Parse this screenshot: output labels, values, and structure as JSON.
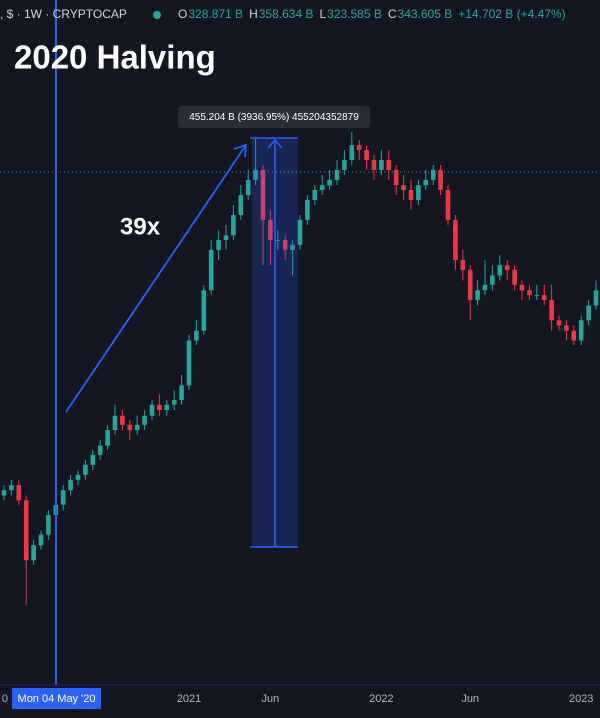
{
  "chart_data": {
    "type": "candlestick",
    "title": "2020 Halving",
    "symbol": ", $ · 1W · CRYPTOCAP",
    "legend_values": [
      {
        "key": "O",
        "value": "328.871 B"
      },
      {
        "key": "H",
        "value": "358.634 B"
      },
      {
        "key": "L",
        "value": "323.585 B"
      },
      {
        "key": "C",
        "value": "343.605 B"
      }
    ],
    "change": "+14.702 B (+4.47%)",
    "annotation": "39x",
    "measure_label": "455.204 B (3936.95%) 455204352879",
    "crosshair_label": "Mon 04 May '20",
    "log_scale": true,
    "ylim": [
      3.34,
      1624
    ],
    "up_color": "#26a69a",
    "down_color": "#f23645",
    "categories": [
      "0",
      null,
      null,
      null,
      null,
      null,
      null,
      null,
      null,
      null,
      null,
      null,
      null,
      null,
      null,
      null,
      null,
      null,
      null,
      null,
      null,
      null,
      null,
      null,
      null,
      "2021",
      null,
      null,
      null,
      null,
      null,
      null,
      null,
      null,
      null,
      null,
      "Jun",
      null,
      null,
      null,
      null,
      null,
      null,
      null,
      null,
      null,
      null,
      null,
      null,
      null,
      null,
      "2022",
      null,
      null,
      null,
      null,
      null,
      null,
      null,
      null,
      null,
      null,
      null,
      "Jun",
      null,
      null,
      null,
      null,
      null,
      null,
      null,
      null,
      null,
      null,
      null,
      null,
      null,
      null,
      "2023",
      null,
      null
    ],
    "open": [
      18.5,
      19.4,
      20.3,
      17.7,
      10.3,
      11.8,
      13,
      15.5,
      17,
      19.4,
      21.3,
      22.3,
      24.4,
      26.7,
      29,
      33.4,
      38,
      35,
      33.4,
      35,
      38,
      42,
      40,
      42,
      43.8,
      50,
      75,
      82,
      118,
      170,
      186,
      194,
      233,
      279,
      320,
      350,
      223,
      186,
      186,
      170,
      178,
      223,
      267,
      292,
      305,
      320,
      350,
      383,
      438,
      419,
      383,
      350,
      383,
      350,
      305,
      292,
      267,
      305,
      320,
      350,
      292,
      223,
      155,
      142,
      108,
      118,
      124,
      135,
      148,
      142,
      124,
      118,
      113,
      113,
      108,
      90,
      86,
      82,
      75,
      90,
      103
    ],
    "high": [
      20.3,
      21.3,
      21.3,
      18.5,
      12.4,
      13.5,
      16.2,
      17.7,
      20.3,
      22.3,
      23.3,
      25.5,
      27.9,
      30.5,
      35,
      42,
      40,
      36.6,
      38,
      40,
      43.8,
      46,
      43.8,
      48,
      55,
      79,
      90,
      124,
      186,
      203,
      213,
      255,
      305,
      350,
      467,
      366,
      244,
      203,
      194,
      186,
      233,
      279,
      305,
      334,
      350,
      383,
      419,
      493,
      459,
      438,
      400,
      419,
      419,
      366,
      334,
      320,
      320,
      350,
      366,
      366,
      305,
      233,
      170,
      148,
      129,
      155,
      148,
      162,
      155,
      148,
      129,
      124,
      124,
      124,
      124,
      94,
      90,
      86,
      94,
      108,
      129
    ],
    "low": [
      17.7,
      18.5,
      17,
      6.9,
      9.9,
      11.3,
      12.4,
      14.8,
      16.2,
      18.5,
      20.3,
      21.3,
      23.3,
      25.5,
      27.9,
      32,
      33.4,
      30.5,
      32,
      33.4,
      36.6,
      38,
      38,
      40,
      42,
      48,
      72,
      79,
      113,
      155,
      170,
      186,
      223,
      267,
      305,
      148,
      148,
      170,
      155,
      135,
      170,
      213,
      255,
      279,
      292,
      305,
      334,
      366,
      383,
      350,
      320,
      334,
      320,
      279,
      267,
      244,
      255,
      292,
      305,
      279,
      213,
      142,
      129,
      90,
      103,
      113,
      118,
      129,
      129,
      118,
      108,
      108,
      108,
      103,
      82,
      82,
      75,
      72,
      72,
      86,
      99
    ],
    "close": [
      19.4,
      20.3,
      17.7,
      10.3,
      11.8,
      13,
      15.5,
      17,
      19.4,
      21.3,
      22.3,
      24.4,
      26.7,
      29,
      33.4,
      38,
      35,
      33.4,
      35,
      38,
      42,
      40,
      42,
      43.8,
      50,
      75,
      82,
      118,
      170,
      186,
      194,
      233,
      279,
      320,
      350,
      223,
      186,
      186,
      170,
      178,
      223,
      267,
      292,
      305,
      320,
      350,
      383,
      438,
      419,
      383,
      350,
      383,
      350,
      305,
      292,
      267,
      305,
      320,
      350,
      292,
      223,
      155,
      142,
      108,
      118,
      124,
      135,
      148,
      142,
      124,
      118,
      113,
      113,
      108,
      90,
      86,
      82,
      75,
      90,
      103,
      118
    ]
  }
}
